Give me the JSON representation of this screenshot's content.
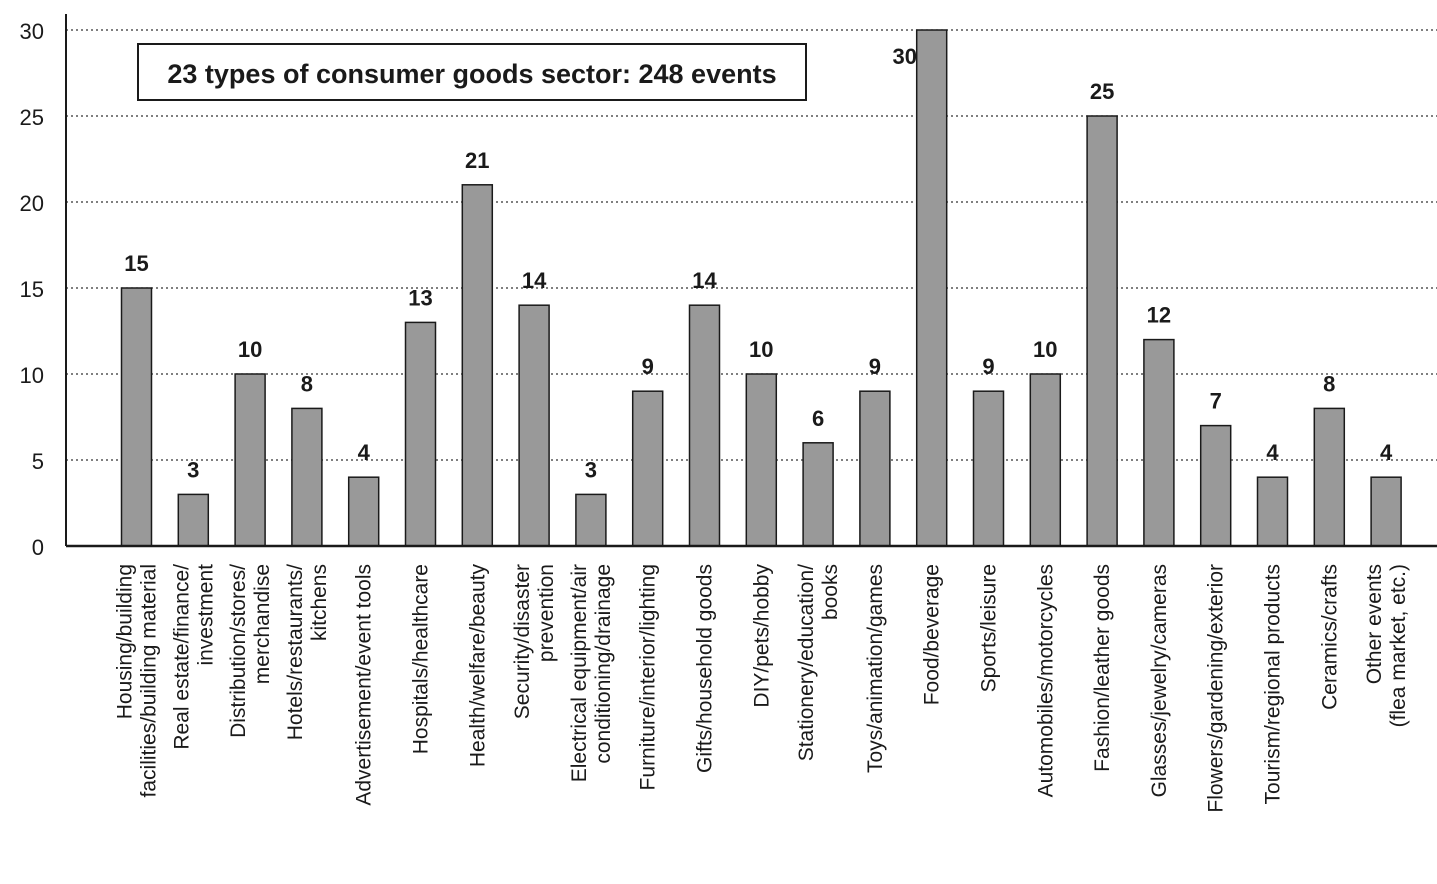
{
  "chart_data": {
    "type": "bar",
    "title": "23 types of consumer goods sector: 248 events",
    "xlabel": "",
    "ylabel": "",
    "ylim": [
      0,
      30
    ],
    "yticks": [
      0,
      5,
      10,
      15,
      20,
      25,
      30
    ],
    "grid": true,
    "categories": [
      [
        "Housing/building",
        "facilities/building material"
      ],
      [
        "Real estate/finance/",
        "investment"
      ],
      [
        "Distribution/stores/",
        "merchandise"
      ],
      [
        "Hotels/restaurants/",
        "kitchens"
      ],
      [
        "Advertisement/event tools"
      ],
      [
        "Hospitals/healthcare"
      ],
      [
        "Health/welfare/beauty"
      ],
      [
        "Security/disaster",
        "prevention"
      ],
      [
        "Electrical equipment/air",
        "conditioning/drainage"
      ],
      [
        "Furniture/interior/lighting"
      ],
      [
        "Gifts/household goods"
      ],
      [
        "DIY/pets/hobby"
      ],
      [
        "Stationery/education/",
        "books"
      ],
      [
        "Toys/animation/games"
      ],
      [
        "Food/beverage"
      ],
      [
        "Sports/leisure"
      ],
      [
        "Automobiles/motorcycles"
      ],
      [
        "Fashion/leather goods"
      ],
      [
        "Glasses/jewelry/cameras"
      ],
      [
        "Flowers/gardening/exterior"
      ],
      [
        "Tourism/regional products"
      ],
      [
        "Ceramics/crafts"
      ],
      [
        "Other events",
        "(flea market, etc.)"
      ]
    ],
    "values": [
      15,
      3,
      10,
      8,
      4,
      13,
      21,
      14,
      3,
      9,
      14,
      10,
      6,
      9,
      30,
      9,
      10,
      25,
      12,
      7,
      4,
      8,
      4
    ],
    "colors": {
      "bar": "#999999",
      "bar_stroke": "#1a1a1a",
      "grid": "#333333",
      "axis": "#1a1a1a"
    }
  }
}
